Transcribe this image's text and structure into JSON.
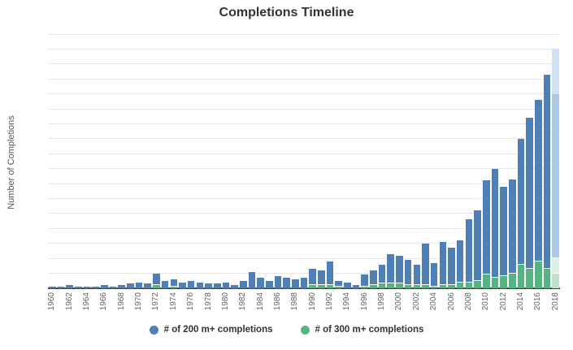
{
  "title": "Completions Timeline",
  "y_axis": {
    "title": "Number of Completions",
    "min": 0,
    "max": 170,
    "step": 10
  },
  "legend": {
    "items": [
      {
        "label": "# of 200 m+ completions",
        "color": "#4e7fb5"
      },
      {
        "label": "# of 300 m+ completions",
        "color": "#58b383"
      }
    ]
  },
  "colors": {
    "blue": "#4e7fb5",
    "green": "#58b383",
    "blue_faded_light": "#cfe1f2",
    "blue_faded_solid": "#aac9e6",
    "green_faded_light": "#ddf0e3",
    "green_faded_solid": "#bce2ca",
    "gridline": "#e7e7e7",
    "axis": "#4a4a4a"
  },
  "chart_data": {
    "type": "bar",
    "title": "Completions Timeline",
    "xlabel": "",
    "ylabel": "Number of Completions",
    "ylim": [
      0,
      170
    ],
    "grid": "horizontal",
    "legend_position": "bottom",
    "x_tick_label_years": [
      1960,
      1962,
      1964,
      1966,
      1968,
      1970,
      1972,
      1974,
      1976,
      1978,
      1980,
      1982,
      1984,
      1986,
      1988,
      1990,
      1992,
      1994,
      1996,
      1998,
      2000,
      2002,
      2004,
      2006,
      2008,
      2010,
      2012,
      2014,
      2016,
      2018
    ],
    "categories": [
      1960,
      1961,
      1962,
      1963,
      1964,
      1965,
      1966,
      1967,
      1968,
      1969,
      1970,
      1971,
      1972,
      1973,
      1974,
      1975,
      1976,
      1977,
      1978,
      1979,
      1980,
      1981,
      1982,
      1983,
      1984,
      1985,
      1986,
      1987,
      1988,
      1989,
      1990,
      1991,
      1992,
      1993,
      1994,
      1995,
      1996,
      1997,
      1998,
      1999,
      2000,
      2001,
      2002,
      2003,
      2004,
      2005,
      2006,
      2007,
      2008,
      2009,
      2010,
      2011,
      2012,
      2013,
      2014,
      2015,
      2016,
      2017,
      2018
    ],
    "series": [
      {
        "name": "# of 200 m+ completions",
        "values": [
          1,
          1,
          2,
          1,
          1,
          1,
          2,
          1,
          2,
          3,
          4,
          3,
          10,
          5,
          6,
          4,
          5,
          4,
          3,
          3,
          4,
          2,
          5,
          11,
          7,
          5,
          8,
          7,
          6,
          7,
          13,
          12,
          18,
          5,
          4,
          2,
          9,
          12,
          16,
          23,
          22,
          19,
          16,
          30,
          17,
          31,
          27,
          32,
          46,
          52,
          72,
          80,
          68,
          73,
          100,
          114,
          126,
          143,
          160
        ]
      },
      {
        "name": "# of 300 m+ completions",
        "values": [
          0,
          0,
          0,
          0,
          0,
          0,
          0,
          0,
          0,
          0,
          0,
          0,
          2,
          0,
          1,
          0,
          0,
          0,
          0,
          0,
          0,
          0,
          0,
          0,
          0,
          0,
          0,
          0,
          0,
          0,
          2,
          2,
          2,
          1,
          0,
          0,
          1,
          2,
          3,
          3,
          3,
          2,
          2,
          2,
          1,
          2,
          2,
          4,
          4,
          5,
          9,
          7,
          8,
          10,
          16,
          13,
          18,
          13,
          20
        ]
      }
    ],
    "faded_projection": {
      "year": 2018,
      "blue_projected_total": 160,
      "blue_solid_overlay": 130,
      "green_projected_total": 20,
      "green_solid_overlay": 10
    }
  }
}
